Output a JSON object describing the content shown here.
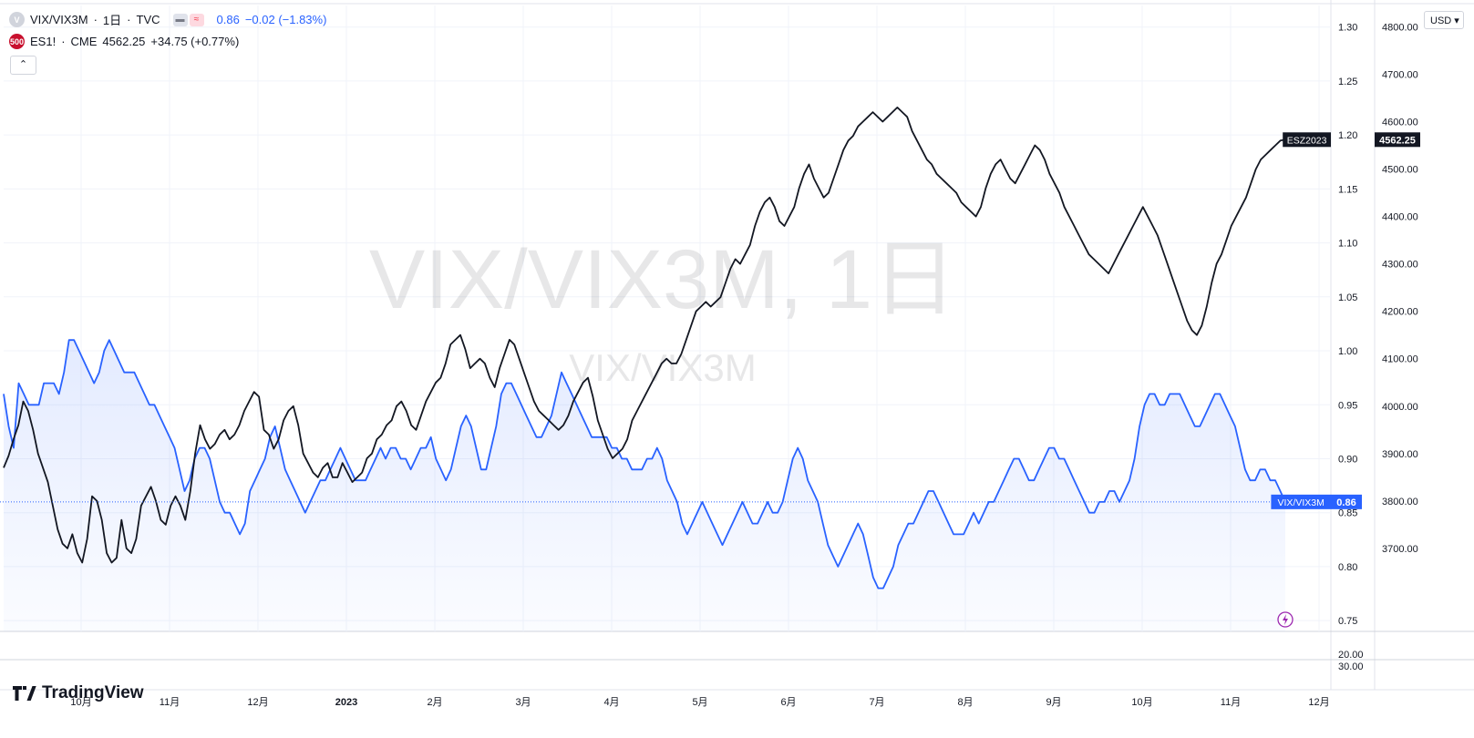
{
  "legend": {
    "vix": {
      "icon_letter": "V",
      "symbol": "VIX/VIX3M",
      "separator": "·",
      "interval": "1日",
      "exchange": "TVC",
      "value": "0.86",
      "change": "−0.02 (−1.83%)"
    },
    "es": {
      "icon_text": "500",
      "symbol": "ES1!",
      "separator": "·",
      "exchange": "CME",
      "value": "4562.25",
      "change": "+34.75 (+0.77%)"
    },
    "collapse_icon": "chevron-up-icon",
    "compare_glyph": "≈"
  },
  "watermark": {
    "main": "VIX/VIX3M, 1日",
    "sub": "VIX/VIX3M"
  },
  "currency": "USD",
  "brand": "TradingView",
  "chart_data": {
    "type": "line",
    "x_labels": [
      "10月",
      "11月",
      "12月",
      "2023",
      "2月",
      "3月",
      "4月",
      "5月",
      "6月",
      "7月",
      "8月",
      "9月",
      "10月",
      "11月",
      "12月"
    ],
    "series": [
      {
        "name": "VIX/VIX3M",
        "axis": "inner-right",
        "color": "#2962ff",
        "fill": true,
        "values": [
          0.96,
          0.93,
          0.91,
          0.97,
          0.96,
          0.95,
          0.95,
          0.95,
          0.97,
          0.97,
          0.97,
          0.96,
          0.98,
          1.01,
          1.01,
          1.0,
          0.99,
          0.98,
          0.97,
          0.98,
          1.0,
          1.01,
          1.0,
          0.99,
          0.98,
          0.98,
          0.98,
          0.97,
          0.96,
          0.95,
          0.95,
          0.94,
          0.93,
          0.92,
          0.91,
          0.89,
          0.87,
          0.88,
          0.9,
          0.91,
          0.91,
          0.9,
          0.88,
          0.86,
          0.85,
          0.85,
          0.84,
          0.83,
          0.84,
          0.87,
          0.88,
          0.89,
          0.9,
          0.92,
          0.93,
          0.91,
          0.89,
          0.88,
          0.87,
          0.86,
          0.85,
          0.86,
          0.87,
          0.88,
          0.88,
          0.89,
          0.9,
          0.91,
          0.9,
          0.89,
          0.88,
          0.88,
          0.88,
          0.89,
          0.9,
          0.91,
          0.9,
          0.91,
          0.91,
          0.9,
          0.9,
          0.89,
          0.9,
          0.91,
          0.91,
          0.92,
          0.9,
          0.89,
          0.88,
          0.89,
          0.91,
          0.93,
          0.94,
          0.93,
          0.91,
          0.89,
          0.89,
          0.91,
          0.93,
          0.96,
          0.97,
          0.97,
          0.96,
          0.95,
          0.94,
          0.93,
          0.92,
          0.92,
          0.93,
          0.94,
          0.96,
          0.98,
          0.97,
          0.96,
          0.95,
          0.94,
          0.93,
          0.92,
          0.92,
          0.92,
          0.92,
          0.91,
          0.91,
          0.9,
          0.9,
          0.89,
          0.89,
          0.89,
          0.9,
          0.9,
          0.91,
          0.9,
          0.88,
          0.87,
          0.86,
          0.84,
          0.83,
          0.84,
          0.85,
          0.86,
          0.85,
          0.84,
          0.83,
          0.82,
          0.83,
          0.84,
          0.85,
          0.86,
          0.85,
          0.84,
          0.84,
          0.85,
          0.86,
          0.85,
          0.85,
          0.86,
          0.88,
          0.9,
          0.91,
          0.9,
          0.88,
          0.87,
          0.86,
          0.84,
          0.82,
          0.81,
          0.8,
          0.81,
          0.82,
          0.83,
          0.84,
          0.83,
          0.81,
          0.79,
          0.78,
          0.78,
          0.79,
          0.8,
          0.82,
          0.83,
          0.84,
          0.84,
          0.85,
          0.86,
          0.87,
          0.87,
          0.86,
          0.85,
          0.84,
          0.83,
          0.83,
          0.83,
          0.84,
          0.85,
          0.84,
          0.85,
          0.86,
          0.86,
          0.87,
          0.88,
          0.89,
          0.9,
          0.9,
          0.89,
          0.88,
          0.88,
          0.89,
          0.9,
          0.91,
          0.91,
          0.9,
          0.9,
          0.89,
          0.88,
          0.87,
          0.86,
          0.85,
          0.85,
          0.86,
          0.86,
          0.87,
          0.87,
          0.86,
          0.87,
          0.88,
          0.9,
          0.93,
          0.95,
          0.96,
          0.96,
          0.95,
          0.95,
          0.96,
          0.96,
          0.96,
          0.95,
          0.94,
          0.93,
          0.93,
          0.94,
          0.95,
          0.96,
          0.96,
          0.95,
          0.94,
          0.93,
          0.91,
          0.89,
          0.88,
          0.88,
          0.89,
          0.89,
          0.88,
          0.88,
          0.87,
          0.86
        ]
      },
      {
        "name": "ES1!",
        "axis": "outer-right",
        "color": "#131722",
        "values": [
          3870,
          3895,
          3930,
          3960,
          4010,
          3990,
          3950,
          3900,
          3870,
          3840,
          3790,
          3740,
          3710,
          3700,
          3730,
          3690,
          3670,
          3720,
          3810,
          3800,
          3760,
          3690,
          3670,
          3680,
          3760,
          3700,
          3690,
          3720,
          3790,
          3810,
          3830,
          3800,
          3760,
          3750,
          3790,
          3810,
          3790,
          3760,
          3820,
          3900,
          3960,
          3930,
          3910,
          3920,
          3940,
          3950,
          3930,
          3940,
          3960,
          3990,
          4010,
          4030,
          4020,
          3950,
          3940,
          3910,
          3930,
          3970,
          3990,
          4000,
          3960,
          3900,
          3880,
          3860,
          3850,
          3870,
          3880,
          3850,
          3850,
          3880,
          3860,
          3840,
          3850,
          3860,
          3890,
          3900,
          3930,
          3940,
          3960,
          3970,
          4000,
          4010,
          3990,
          3960,
          3950,
          3980,
          4010,
          4030,
          4050,
          4060,
          4090,
          4130,
          4140,
          4150,
          4120,
          4080,
          4090,
          4100,
          4090,
          4060,
          4040,
          4080,
          4110,
          4140,
          4130,
          4100,
          4070,
          4040,
          4010,
          3990,
          3980,
          3970,
          3960,
          3950,
          3960,
          3980,
          4010,
          4030,
          4050,
          4060,
          4020,
          3970,
          3940,
          3910,
          3890,
          3900,
          3910,
          3930,
          3970,
          3990,
          4010,
          4030,
          4050,
          4070,
          4090,
          4100,
          4090,
          4090,
          4110,
          4140,
          4170,
          4200,
          4210,
          4220,
          4210,
          4220,
          4230,
          4260,
          4290,
          4310,
          4300,
          4320,
          4340,
          4380,
          4410,
          4430,
          4440,
          4420,
          4390,
          4380,
          4400,
          4420,
          4460,
          4490,
          4510,
          4480,
          4460,
          4440,
          4450,
          4480,
          4510,
          4540,
          4560,
          4570,
          4590,
          4600,
          4610,
          4620,
          4610,
          4600,
          4610,
          4620,
          4630,
          4620,
          4610,
          4580,
          4560,
          4540,
          4520,
          4510,
          4490,
          4480,
          4470,
          4460,
          4450,
          4430,
          4420,
          4410,
          4400,
          4420,
          4460,
          4490,
          4510,
          4520,
          4500,
          4480,
          4470,
          4490,
          4510,
          4530,
          4550,
          4540,
          4520,
          4490,
          4470,
          4450,
          4420,
          4400,
          4380,
          4360,
          4340,
          4320,
          4310,
          4300,
          4290,
          4280,
          4300,
          4320,
          4340,
          4360,
          4380,
          4400,
          4420,
          4400,
          4380,
          4360,
          4330,
          4300,
          4270,
          4240,
          4210,
          4180,
          4160,
          4150,
          4170,
          4210,
          4260,
          4300,
          4320,
          4350,
          4380,
          4400,
          4420,
          4440,
          4470,
          4500,
          4520,
          4530,
          4540,
          4550,
          4560,
          4562
        ]
      }
    ],
    "inner_axis": {
      "ylim": [
        0.74,
        1.32
      ],
      "ticks": [
        "1.30",
        "1.25",
        "1.20",
        "1.15",
        "1.10",
        "1.05",
        "1.00",
        "0.95",
        "0.90",
        "0.85",
        "0.80",
        "0.75"
      ]
    },
    "outer_axis": {
      "ylim": [
        3525,
        4845
      ],
      "ticks": [
        "4800.00",
        "4700.00",
        "4600.00",
        "4500.00",
        "4400.00",
        "4300.00",
        "4200.00",
        "4100.00",
        "4000.00",
        "3900.00",
        "3800.00",
        "3700.00"
      ]
    },
    "lower_pane_ticks": [
      "20.00",
      "30.00"
    ],
    "last_labels": [
      {
        "text": "VIX/VIX3M",
        "value": "0.86",
        "color": "#2962ff"
      },
      {
        "text": "ESZ2023",
        "value": "4562.25",
        "color": "#131722"
      }
    ],
    "grid": true
  }
}
